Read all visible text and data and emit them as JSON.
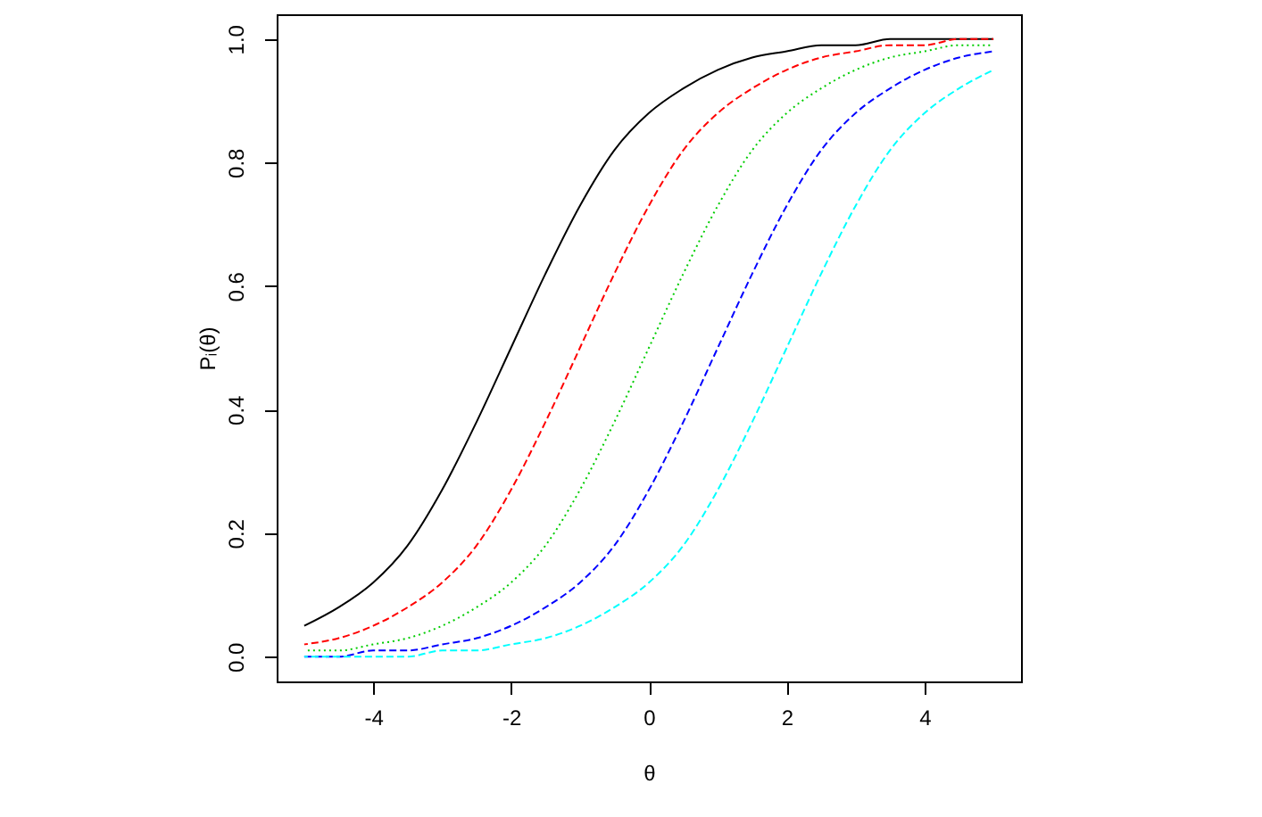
{
  "chart_data": {
    "type": "line",
    "xlabel": "θ",
    "ylabel": "Pᵢ(θ)",
    "x": [
      -5,
      -4.5,
      -4,
      -3.5,
      -3,
      -2.5,
      -2,
      -1.5,
      -1,
      -0.5,
      0,
      0.5,
      1,
      1.5,
      2,
      2.5,
      3,
      3.5,
      4,
      4.5,
      5
    ],
    "series": [
      {
        "color": "#000000",
        "line_style": "solid",
        "values": [
          0.05,
          0.08,
          0.12,
          0.18,
          0.27,
          0.38,
          0.5,
          0.62,
          0.73,
          0.82,
          0.88,
          0.92,
          0.95,
          0.97,
          0.98,
          0.99,
          0.99,
          1.0,
          1.0,
          1.0,
          1.0
        ]
      },
      {
        "color": "#ff0000",
        "line_style": "dashed",
        "values": [
          0.02,
          0.03,
          0.05,
          0.08,
          0.12,
          0.18,
          0.27,
          0.38,
          0.5,
          0.62,
          0.73,
          0.82,
          0.88,
          0.92,
          0.95,
          0.97,
          0.98,
          0.99,
          0.99,
          1.0,
          1.0
        ]
      },
      {
        "color": "#00cd00",
        "line_style": "dotted",
        "values": [
          0.01,
          0.01,
          0.02,
          0.03,
          0.05,
          0.08,
          0.12,
          0.18,
          0.27,
          0.38,
          0.5,
          0.62,
          0.73,
          0.82,
          0.88,
          0.92,
          0.95,
          0.97,
          0.98,
          0.99,
          0.99
        ]
      },
      {
        "color": "#0000ff",
        "line_style": "dashed",
        "values": [
          0.0,
          0.0,
          0.01,
          0.01,
          0.02,
          0.03,
          0.05,
          0.08,
          0.12,
          0.18,
          0.27,
          0.38,
          0.5,
          0.62,
          0.73,
          0.82,
          0.88,
          0.92,
          0.95,
          0.97,
          0.98
        ]
      },
      {
        "color": "#00ffff",
        "line_style": "dashed",
        "values": [
          0.0,
          0.0,
          0.0,
          0.0,
          0.01,
          0.01,
          0.02,
          0.03,
          0.05,
          0.08,
          0.12,
          0.18,
          0.27,
          0.38,
          0.5,
          0.62,
          0.73,
          0.82,
          0.88,
          0.92,
          0.95
        ]
      }
    ],
    "xlim": [
      -5.4,
      5.4
    ],
    "ylim": [
      -0.04,
      1.04
    ],
    "xticks": [
      -4,
      -2,
      0,
      2,
      4
    ],
    "yticks": [
      {
        "value": 0,
        "label": "0.0"
      },
      0.2,
      0.4,
      0.6,
      0.8,
      {
        "value": 1,
        "label": "1.0"
      }
    ],
    "grid": false,
    "marker": "none"
  }
}
